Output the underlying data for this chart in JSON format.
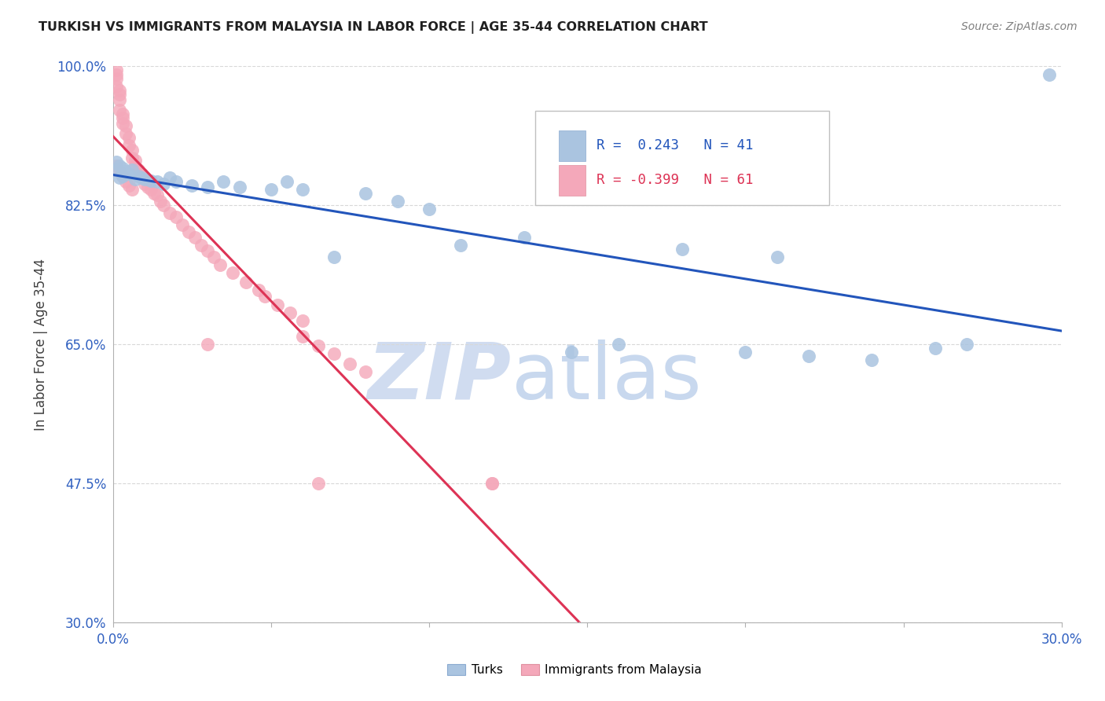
{
  "title": "TURKISH VS IMMIGRANTS FROM MALAYSIA IN LABOR FORCE | AGE 35-44 CORRELATION CHART",
  "source": "Source: ZipAtlas.com",
  "ylabel": "In Labor Force | Age 35-44",
  "xlim": [
    0.0,
    0.3
  ],
  "ylim": [
    0.3,
    1.0
  ],
  "xticks": [
    0.0,
    0.05,
    0.1,
    0.15,
    0.2,
    0.25,
    0.3
  ],
  "xtick_labels": [
    "0.0%",
    "",
    "",
    "",
    "",
    "",
    "30.0%"
  ],
  "yticks": [
    0.3,
    0.475,
    0.65,
    0.825,
    1.0
  ],
  "ytick_labels": [
    "30.0%",
    "47.5%",
    "65.0%",
    "82.5%",
    "100.0%"
  ],
  "r_turks": 0.243,
  "n_turks": 41,
  "r_malaysia": -0.399,
  "n_malaysia": 61,
  "turk_color": "#aac4e0",
  "malaysia_color": "#f4a8ba",
  "turk_line_color": "#2255bb",
  "malaysia_line_color": "#dd3355",
  "malaysia_line_dashed_color": "#e0b0bc",
  "legend_r_turks_color": "#2255bb",
  "legend_r_malaysia_color": "#dd3355",
  "watermark_zip_color": "#d0dcf0",
  "watermark_atlas_color": "#c8d8ee",
  "turks_x": [
    0.001,
    0.001,
    0.002,
    0.002,
    0.003,
    0.003,
    0.004,
    0.005,
    0.006,
    0.007,
    0.008,
    0.009,
    0.01,
    0.012,
    0.014,
    0.016,
    0.018,
    0.02,
    0.025,
    0.03,
    0.035,
    0.04,
    0.05,
    0.055,
    0.06,
    0.07,
    0.08,
    0.09,
    0.1,
    0.11,
    0.13,
    0.145,
    0.16,
    0.18,
    0.2,
    0.21,
    0.22,
    0.24,
    0.26,
    0.27,
    0.296
  ],
  "turks_y": [
    0.88,
    0.87,
    0.875,
    0.86,
    0.872,
    0.862,
    0.868,
    0.865,
    0.87,
    0.858,
    0.862,
    0.86,
    0.858,
    0.856,
    0.855,
    0.852,
    0.86,
    0.855,
    0.85,
    0.848,
    0.855,
    0.848,
    0.845,
    0.855,
    0.845,
    0.76,
    0.84,
    0.83,
    0.82,
    0.775,
    0.785,
    0.64,
    0.65,
    0.77,
    0.64,
    0.76,
    0.635,
    0.63,
    0.645,
    0.65,
    0.99
  ],
  "malaysia_x": [
    0.001,
    0.001,
    0.001,
    0.001,
    0.002,
    0.002,
    0.002,
    0.002,
    0.003,
    0.003,
    0.003,
    0.004,
    0.004,
    0.005,
    0.005,
    0.006,
    0.006,
    0.007,
    0.007,
    0.008,
    0.009,
    0.01,
    0.01,
    0.011,
    0.012,
    0.013,
    0.014,
    0.015,
    0.016,
    0.018,
    0.02,
    0.022,
    0.024,
    0.026,
    0.028,
    0.03,
    0.032,
    0.034,
    0.038,
    0.042,
    0.046,
    0.048,
    0.052,
    0.056,
    0.06,
    0.06,
    0.065,
    0.07,
    0.075,
    0.08,
    0.001,
    0.001,
    0.002,
    0.003,
    0.004,
    0.005,
    0.006,
    0.03,
    0.065,
    0.12,
    0.12
  ],
  "malaysia_y": [
    0.995,
    0.99,
    0.985,
    0.975,
    0.97,
    0.965,
    0.958,
    0.945,
    0.94,
    0.935,
    0.928,
    0.925,
    0.915,
    0.91,
    0.9,
    0.895,
    0.885,
    0.882,
    0.875,
    0.87,
    0.865,
    0.86,
    0.852,
    0.848,
    0.845,
    0.84,
    0.838,
    0.83,
    0.825,
    0.815,
    0.81,
    0.8,
    0.792,
    0.785,
    0.775,
    0.768,
    0.76,
    0.75,
    0.74,
    0.728,
    0.718,
    0.71,
    0.7,
    0.69,
    0.68,
    0.66,
    0.648,
    0.638,
    0.625,
    0.615,
    0.87,
    0.875,
    0.868,
    0.862,
    0.855,
    0.85,
    0.845,
    0.65,
    0.475,
    0.475,
    0.475
  ]
}
